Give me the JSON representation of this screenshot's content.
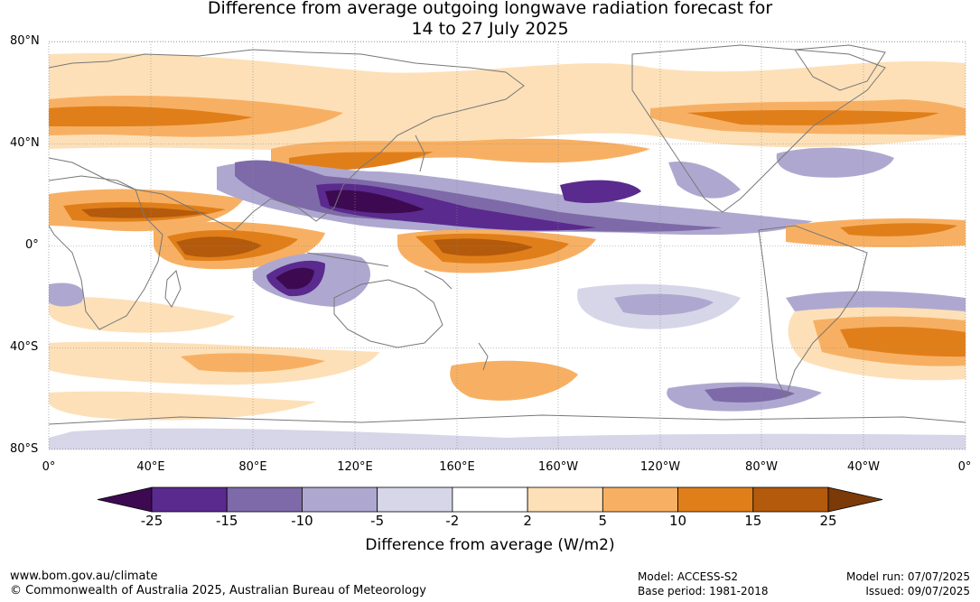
{
  "title": {
    "line1": "Difference from average outgoing longwave radiation forecast for",
    "line2": "14 to 27 July 2025"
  },
  "lat_labels": [
    "80°N",
    "40°N",
    "0°",
    "40°S",
    "80°S"
  ],
  "lon_labels": [
    "0°",
    "40°E",
    "80°E",
    "120°E",
    "160°E",
    "160°W",
    "120°W",
    "80°W",
    "40°W",
    "0°"
  ],
  "legend": {
    "ticks": [
      "-25",
      "-15",
      "-10",
      "-5",
      "-2",
      "2",
      "5",
      "10",
      "15",
      "25"
    ],
    "colors": [
      "#3d0a52",
      "#5b2a8e",
      "#7e6aa8",
      "#aea8d0",
      "#d6d6e8",
      "#ffffff",
      "#fde0b8",
      "#f7b063",
      "#e07f1a",
      "#b45a0c",
      "#7b3a08"
    ],
    "label": "Difference from average (W/m2)"
  },
  "footer": {
    "url": "www.bom.gov.au/climate",
    "copyright": "© Commonwealth of Australia 2025, Australian Bureau of Meteorology",
    "model": "Model: ACCESS-S2",
    "base_period": "Base period: 1981-2018",
    "model_run": "Model run: 07/07/2025",
    "issued": "Issued: 09/07/2025"
  }
}
